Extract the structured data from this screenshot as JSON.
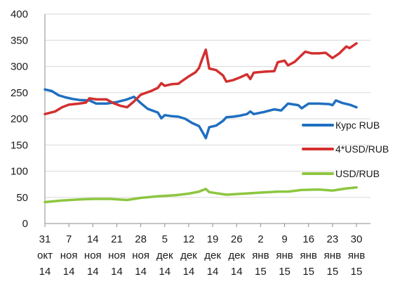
{
  "chart_data": {
    "type": "line",
    "title": "",
    "xlabel": "",
    "ylabel": "",
    "ylim": [
      0,
      400
    ],
    "y_ticks": [
      0,
      50,
      100,
      150,
      200,
      250,
      300,
      350,
      400
    ],
    "x_range": [
      "2014-10-31",
      "2015-01-30"
    ],
    "x_tick_labels": [
      {
        "date": "2014-10-31",
        "lines": [
          "31",
          "окт",
          "14"
        ]
      },
      {
        "date": "2014-11-07",
        "lines": [
          "7",
          "ноя",
          "14"
        ]
      },
      {
        "date": "2014-11-14",
        "lines": [
          "14",
          "ноя",
          "14"
        ]
      },
      {
        "date": "2014-11-21",
        "lines": [
          "21",
          "ноя",
          "14"
        ]
      },
      {
        "date": "2014-11-28",
        "lines": [
          "28",
          "ноя",
          "14"
        ]
      },
      {
        "date": "2014-12-05",
        "lines": [
          "5",
          "дек",
          "14"
        ]
      },
      {
        "date": "2014-12-12",
        "lines": [
          "12",
          "дек",
          "14"
        ]
      },
      {
        "date": "2014-12-19",
        "lines": [
          "19",
          "дек",
          "14"
        ]
      },
      {
        "date": "2014-12-26",
        "lines": [
          "26",
          "дек",
          "14"
        ]
      },
      {
        "date": "2015-01-02",
        "lines": [
          "2",
          "янв",
          "15"
        ]
      },
      {
        "date": "2015-01-09",
        "lines": [
          "9",
          "янв",
          "15"
        ]
      },
      {
        "date": "2015-01-16",
        "lines": [
          "16",
          "янв",
          "15"
        ]
      },
      {
        "date": "2015-01-23",
        "lines": [
          "23",
          "янв",
          "15"
        ]
      },
      {
        "date": "2015-01-30",
        "lines": [
          "30",
          "янв",
          "15"
        ]
      }
    ],
    "grid": true,
    "legend_position": "right",
    "series": [
      {
        "name": "Курс RUB",
        "color": "#1f6fc0",
        "points": [
          {
            "x": "2014-10-31",
            "y": 256
          },
          {
            "x": "2014-11-02",
            "y": 253
          },
          {
            "x": "2014-11-04",
            "y": 245
          },
          {
            "x": "2014-11-06",
            "y": 241
          },
          {
            "x": "2014-11-08",
            "y": 238
          },
          {
            "x": "2014-11-10",
            "y": 236
          },
          {
            "x": "2014-11-13",
            "y": 235
          },
          {
            "x": "2014-11-15",
            "y": 229
          },
          {
            "x": "2014-11-18",
            "y": 229
          },
          {
            "x": "2014-11-21",
            "y": 232
          },
          {
            "x": "2014-11-24",
            "y": 237
          },
          {
            "x": "2014-11-26",
            "y": 242
          },
          {
            "x": "2014-11-28",
            "y": 230
          },
          {
            "x": "2014-11-30",
            "y": 219
          },
          {
            "x": "2014-12-03",
            "y": 212
          },
          {
            "x": "2014-12-04",
            "y": 201
          },
          {
            "x": "2014-12-05",
            "y": 207
          },
          {
            "x": "2014-12-07",
            "y": 205
          },
          {
            "x": "2014-12-09",
            "y": 204
          },
          {
            "x": "2014-12-11",
            "y": 200
          },
          {
            "x": "2014-12-13",
            "y": 192
          },
          {
            "x": "2014-12-15",
            "y": 186
          },
          {
            "x": "2014-12-16",
            "y": 175
          },
          {
            "x": "2014-12-17",
            "y": 163
          },
          {
            "x": "2014-12-18",
            "y": 184
          },
          {
            "x": "2014-12-20",
            "y": 187
          },
          {
            "x": "2014-12-22",
            "y": 196
          },
          {
            "x": "2014-12-23",
            "y": 203
          },
          {
            "x": "2014-12-25",
            "y": 204
          },
          {
            "x": "2014-12-27",
            "y": 206
          },
          {
            "x": "2014-12-29",
            "y": 209
          },
          {
            "x": "2014-12-30",
            "y": 214
          },
          {
            "x": "2014-12-31",
            "y": 209
          },
          {
            "x": "2015-01-03",
            "y": 213
          },
          {
            "x": "2015-01-06",
            "y": 218
          },
          {
            "x": "2015-01-08",
            "y": 216
          },
          {
            "x": "2015-01-10",
            "y": 229
          },
          {
            "x": "2015-01-13",
            "y": 226
          },
          {
            "x": "2015-01-14",
            "y": 220
          },
          {
            "x": "2015-01-16",
            "y": 229
          },
          {
            "x": "2015-01-19",
            "y": 229
          },
          {
            "x": "2015-01-22",
            "y": 228
          },
          {
            "x": "2015-01-23",
            "y": 226
          },
          {
            "x": "2015-01-24",
            "y": 235
          },
          {
            "x": "2015-01-26",
            "y": 230
          },
          {
            "x": "2015-01-28",
            "y": 227
          },
          {
            "x": "2015-01-30",
            "y": 222
          }
        ]
      },
      {
        "name": "4*USD/RUB",
        "color": "#d32f2f",
        "points": [
          {
            "x": "2014-10-31",
            "y": 209
          },
          {
            "x": "2014-11-03",
            "y": 214
          },
          {
            "x": "2014-11-05",
            "y": 222
          },
          {
            "x": "2014-11-07",
            "y": 227
          },
          {
            "x": "2014-11-10",
            "y": 229
          },
          {
            "x": "2014-11-12",
            "y": 231
          },
          {
            "x": "2014-11-13",
            "y": 239
          },
          {
            "x": "2014-11-15",
            "y": 237
          },
          {
            "x": "2014-11-18",
            "y": 237
          },
          {
            "x": "2014-11-20",
            "y": 230
          },
          {
            "x": "2014-11-22",
            "y": 225
          },
          {
            "x": "2014-11-24",
            "y": 222
          },
          {
            "x": "2014-11-26",
            "y": 233
          },
          {
            "x": "2014-11-28",
            "y": 246
          },
          {
            "x": "2014-12-01",
            "y": 253
          },
          {
            "x": "2014-12-03",
            "y": 259
          },
          {
            "x": "2014-12-04",
            "y": 268
          },
          {
            "x": "2014-12-05",
            "y": 263
          },
          {
            "x": "2014-12-07",
            "y": 266
          },
          {
            "x": "2014-12-09",
            "y": 267
          },
          {
            "x": "2014-12-10",
            "y": 272
          },
          {
            "x": "2014-12-12",
            "y": 281
          },
          {
            "x": "2014-12-14",
            "y": 289
          },
          {
            "x": "2014-12-15",
            "y": 297
          },
          {
            "x": "2014-12-16",
            "y": 315
          },
          {
            "x": "2014-12-17",
            "y": 332
          },
          {
            "x": "2014-12-18",
            "y": 296
          },
          {
            "x": "2014-12-20",
            "y": 293
          },
          {
            "x": "2014-12-22",
            "y": 283
          },
          {
            "x": "2014-12-23",
            "y": 271
          },
          {
            "x": "2014-12-25",
            "y": 274
          },
          {
            "x": "2014-12-27",
            "y": 279
          },
          {
            "x": "2014-12-29",
            "y": 285
          },
          {
            "x": "2014-12-30",
            "y": 276
          },
          {
            "x": "2014-12-31",
            "y": 288
          },
          {
            "x": "2015-01-03",
            "y": 290
          },
          {
            "x": "2015-01-06",
            "y": 291
          },
          {
            "x": "2015-01-07",
            "y": 308
          },
          {
            "x": "2015-01-09",
            "y": 311
          },
          {
            "x": "2015-01-10",
            "y": 302
          },
          {
            "x": "2015-01-12",
            "y": 309
          },
          {
            "x": "2015-01-15",
            "y": 328
          },
          {
            "x": "2015-01-17",
            "y": 325
          },
          {
            "x": "2015-01-19",
            "y": 325
          },
          {
            "x": "2015-01-21",
            "y": 326
          },
          {
            "x": "2015-01-23",
            "y": 316
          },
          {
            "x": "2015-01-25",
            "y": 325
          },
          {
            "x": "2015-01-27",
            "y": 338
          },
          {
            "x": "2015-01-28",
            "y": 335
          },
          {
            "x": "2015-01-30",
            "y": 344
          }
        ]
      },
      {
        "name": "USD/RUB",
        "color": "#8dc63f",
        "points": [
          {
            "x": "2014-10-31",
            "y": 41
          },
          {
            "x": "2014-11-05",
            "y": 44
          },
          {
            "x": "2014-11-10",
            "y": 46
          },
          {
            "x": "2014-11-14",
            "y": 47
          },
          {
            "x": "2014-11-19",
            "y": 47
          },
          {
            "x": "2014-11-24",
            "y": 45
          },
          {
            "x": "2014-11-28",
            "y": 49
          },
          {
            "x": "2014-12-03",
            "y": 52
          },
          {
            "x": "2014-12-08",
            "y": 54
          },
          {
            "x": "2014-12-12",
            "y": 57
          },
          {
            "x": "2014-12-15",
            "y": 61
          },
          {
            "x": "2014-12-17",
            "y": 66
          },
          {
            "x": "2014-12-18",
            "y": 60
          },
          {
            "x": "2014-12-23",
            "y": 55
          },
          {
            "x": "2014-12-28",
            "y": 57
          },
          {
            "x": "2015-01-02",
            "y": 59
          },
          {
            "x": "2015-01-07",
            "y": 61
          },
          {
            "x": "2015-01-10",
            "y": 61
          },
          {
            "x": "2015-01-14",
            "y": 64
          },
          {
            "x": "2015-01-19",
            "y": 65
          },
          {
            "x": "2015-01-23",
            "y": 63
          },
          {
            "x": "2015-01-27",
            "y": 67
          },
          {
            "x": "2015-01-30",
            "y": 69
          }
        ]
      }
    ]
  }
}
